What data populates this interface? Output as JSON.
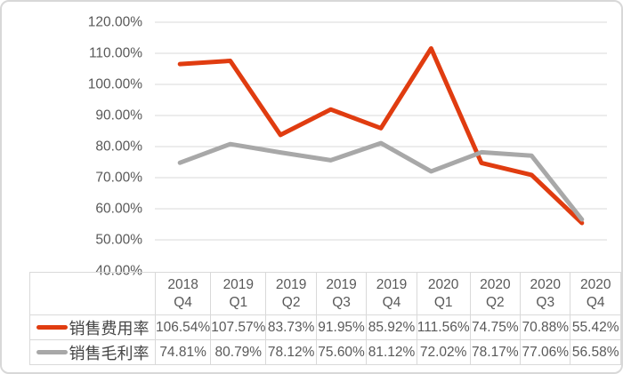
{
  "chart_data": {
    "type": "line",
    "categories": [
      "2018 Q4",
      "2019 Q1",
      "2019 Q2",
      "2019 Q3",
      "2019 Q4",
      "2020 Q1",
      "2020 Q2",
      "2020 Q3",
      "2020 Q4"
    ],
    "series": [
      {
        "name": "销售费用率",
        "color": "#e03c10",
        "values": [
          106.54,
          107.57,
          83.73,
          91.95,
          85.92,
          111.56,
          74.75,
          70.88,
          55.42
        ],
        "labels": [
          "106.54%",
          "107.57%",
          "83.73%",
          "91.95%",
          "85.92%",
          "111.56%",
          "74.75%",
          "70.88%",
          "55.42%"
        ]
      },
      {
        "name": "销售毛利率",
        "color": "#a8a8a8",
        "values": [
          74.81,
          80.79,
          78.12,
          75.6,
          81.12,
          72.02,
          78.17,
          77.06,
          56.58
        ],
        "labels": [
          "74.81%",
          "80.79%",
          "78.12%",
          "75.60%",
          "81.12%",
          "72.02%",
          "78.17%",
          "77.06%",
          "56.58%"
        ]
      }
    ],
    "ylim": [
      40,
      120
    ],
    "yticks": [
      {
        "value": 120,
        "label": "120.00%"
      },
      {
        "value": 110,
        "label": "110.00%"
      },
      {
        "value": 100,
        "label": "100.00%"
      },
      {
        "value": 90,
        "label": "90.00%"
      },
      {
        "value": 80,
        "label": "80.00%"
      },
      {
        "value": 70,
        "label": "70.00%"
      },
      {
        "value": 60,
        "label": "60.00%"
      },
      {
        "value": 50,
        "label": "50.00%"
      },
      {
        "value": 40,
        "label": "40.00%"
      }
    ],
    "title": "",
    "xlabel": "",
    "ylabel": "",
    "grid": true,
    "legend_position": "table-left",
    "colors": {
      "gridline": "#d9d9d9",
      "axis_text": "#595959",
      "table_border": "#d9d9d9",
      "table_text": "#595959"
    }
  }
}
